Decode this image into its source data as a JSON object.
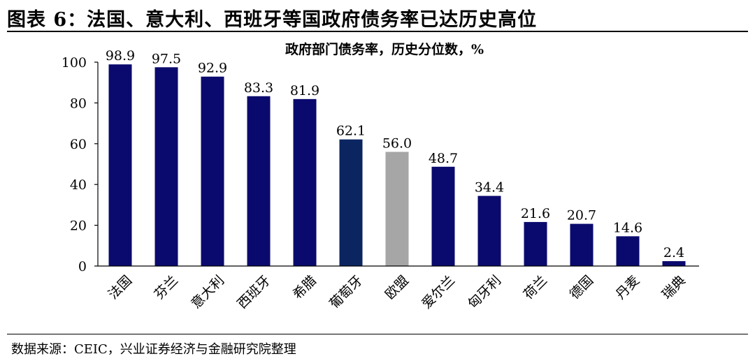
{
  "figure": {
    "title": "图表 6：法国、意大利、西班牙等国政府债务率已达历史高位",
    "source": "数据来源：CEIC，兴业证券经济与金融研究院整理"
  },
  "colors": {
    "default_bar": "#0a0a6e",
    "highlight_bar": "#0b2561",
    "eu_bar": "#a6a6a6"
  },
  "chart_data": {
    "type": "bar",
    "title": "政府部门债务率，历史分位数，%",
    "xlabel": "",
    "ylabel": "",
    "categories": [
      "法国",
      "芬兰",
      "意大利",
      "西班牙",
      "希腊",
      "葡萄牙",
      "欧盟",
      "爱尔兰",
      "匈牙利",
      "荷兰",
      "德国",
      "丹麦",
      "瑞典"
    ],
    "values": [
      98.9,
      97.5,
      92.9,
      83.3,
      81.9,
      62.1,
      56.0,
      48.7,
      34.4,
      21.6,
      20.7,
      14.6,
      2.4
    ],
    "value_labels": [
      "98.9",
      "97.5",
      "92.9",
      "83.3",
      "81.9",
      "62.1",
      "56.0",
      "48.7",
      "34.4",
      "21.6",
      "20.7",
      "14.6",
      "2.4"
    ],
    "bar_colors": [
      "#0a0a6e",
      "#0a0a6e",
      "#0a0a6e",
      "#0a0a6e",
      "#0a0a6e",
      "#0b2561",
      "#a6a6a6",
      "#0a0a6e",
      "#0a0a6e",
      "#0a0a6e",
      "#0a0a6e",
      "#0a0a6e",
      "#0a0a6e"
    ],
    "ylim": [
      0,
      100
    ],
    "yticks": [
      0,
      20,
      40,
      60,
      80,
      100
    ],
    "grid": false,
    "legend": "none"
  }
}
